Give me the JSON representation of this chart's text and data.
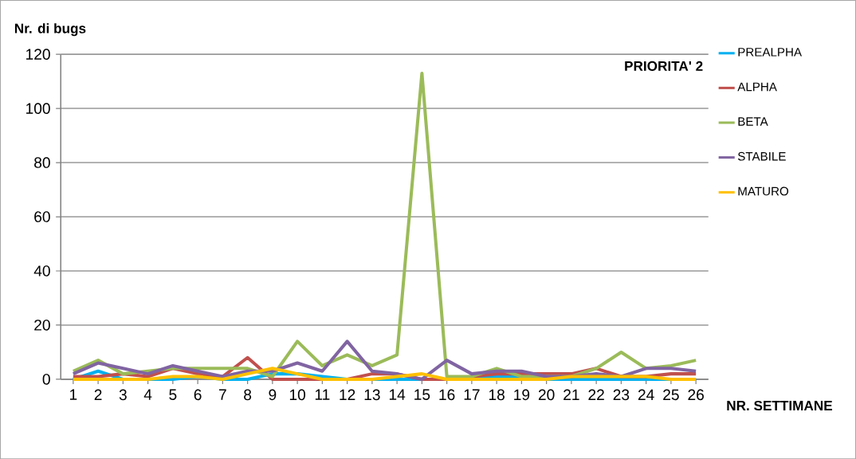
{
  "chart_data": {
    "type": "line",
    "title": "PRIORITA' 2",
    "xlabel": "NR. SETTIMANE",
    "ylabel": "Nr. di bugs",
    "categories": [
      "1",
      "2",
      "3",
      "4",
      "5",
      "6",
      "7",
      "8",
      "9",
      "10",
      "11",
      "12",
      "13",
      "14",
      "15",
      "16",
      "17",
      "18",
      "19",
      "20",
      "21",
      "22",
      "23",
      "24",
      "25",
      "26"
    ],
    "series": [
      {
        "name": "PREALPHA",
        "color": "#00b0f0",
        "values": [
          0,
          3,
          0,
          0,
          0,
          1,
          0,
          0,
          2,
          2,
          1,
          0,
          0,
          0,
          0,
          0,
          null,
          1,
          1,
          0,
          0,
          0,
          0,
          0,
          0,
          0
        ]
      },
      {
        "name": "ALPHA",
        "color": "#c0504d",
        "values": [
          1,
          1,
          2,
          1,
          4,
          2,
          1,
          8,
          0,
          0,
          0,
          0,
          2,
          2,
          0,
          0,
          1,
          2,
          2,
          2,
          2,
          4,
          1,
          1,
          2,
          2
        ]
      },
      {
        "name": "BETA",
        "color": "#9bbb59",
        "values": [
          3,
          7,
          2,
          3,
          4,
          4,
          4,
          4,
          1,
          14,
          5,
          9,
          5,
          9,
          113,
          1,
          1,
          4,
          1,
          1,
          1,
          4,
          10,
          4,
          5,
          7
        ]
      },
      {
        "name": "STABILE",
        "color": "#8064a2",
        "values": [
          2,
          6,
          4,
          2,
          5,
          3,
          1,
          3,
          3,
          6,
          3,
          14,
          3,
          2,
          0,
          7,
          2,
          3,
          3,
          1,
          1,
          2,
          1,
          4,
          4,
          3
        ]
      },
      {
        "name": "MATURO",
        "color": "#ffc000",
        "values": [
          0,
          0,
          0,
          0,
          1,
          1,
          0,
          2,
          4,
          2,
          0,
          0,
          0,
          1,
          2,
          0,
          0,
          0,
          0,
          0,
          1,
          1,
          1,
          1,
          0,
          0
        ]
      }
    ],
    "ylim": [
      0,
      120
    ],
    "yticks": [
      0,
      20,
      40,
      60,
      80,
      100,
      120
    ],
    "grid": "y",
    "legend": "right",
    "marker": "none",
    "line_style": "solid"
  }
}
